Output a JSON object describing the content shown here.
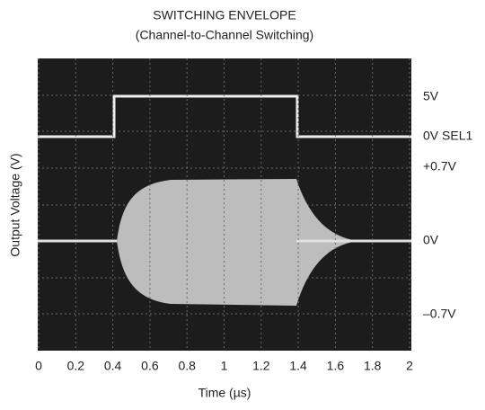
{
  "chart_data": {
    "type": "oscilloscope",
    "title": "SWITCHING ENVELOPE",
    "subtitle": "(Channel-to-Channel Switching)",
    "xlabel": "Time (µs)",
    "ylabel": "Output Voltage (V)",
    "xlim": [
      0,
      2
    ],
    "xticks": [
      0,
      0.2,
      0.4,
      0.6,
      0.8,
      1,
      1.2,
      1.4,
      1.6,
      1.8,
      2
    ],
    "trace_labels": [
      "5V",
      "0V SEL1",
      "+0.7V",
      "0V",
      "–0.7V"
    ]
  }
}
